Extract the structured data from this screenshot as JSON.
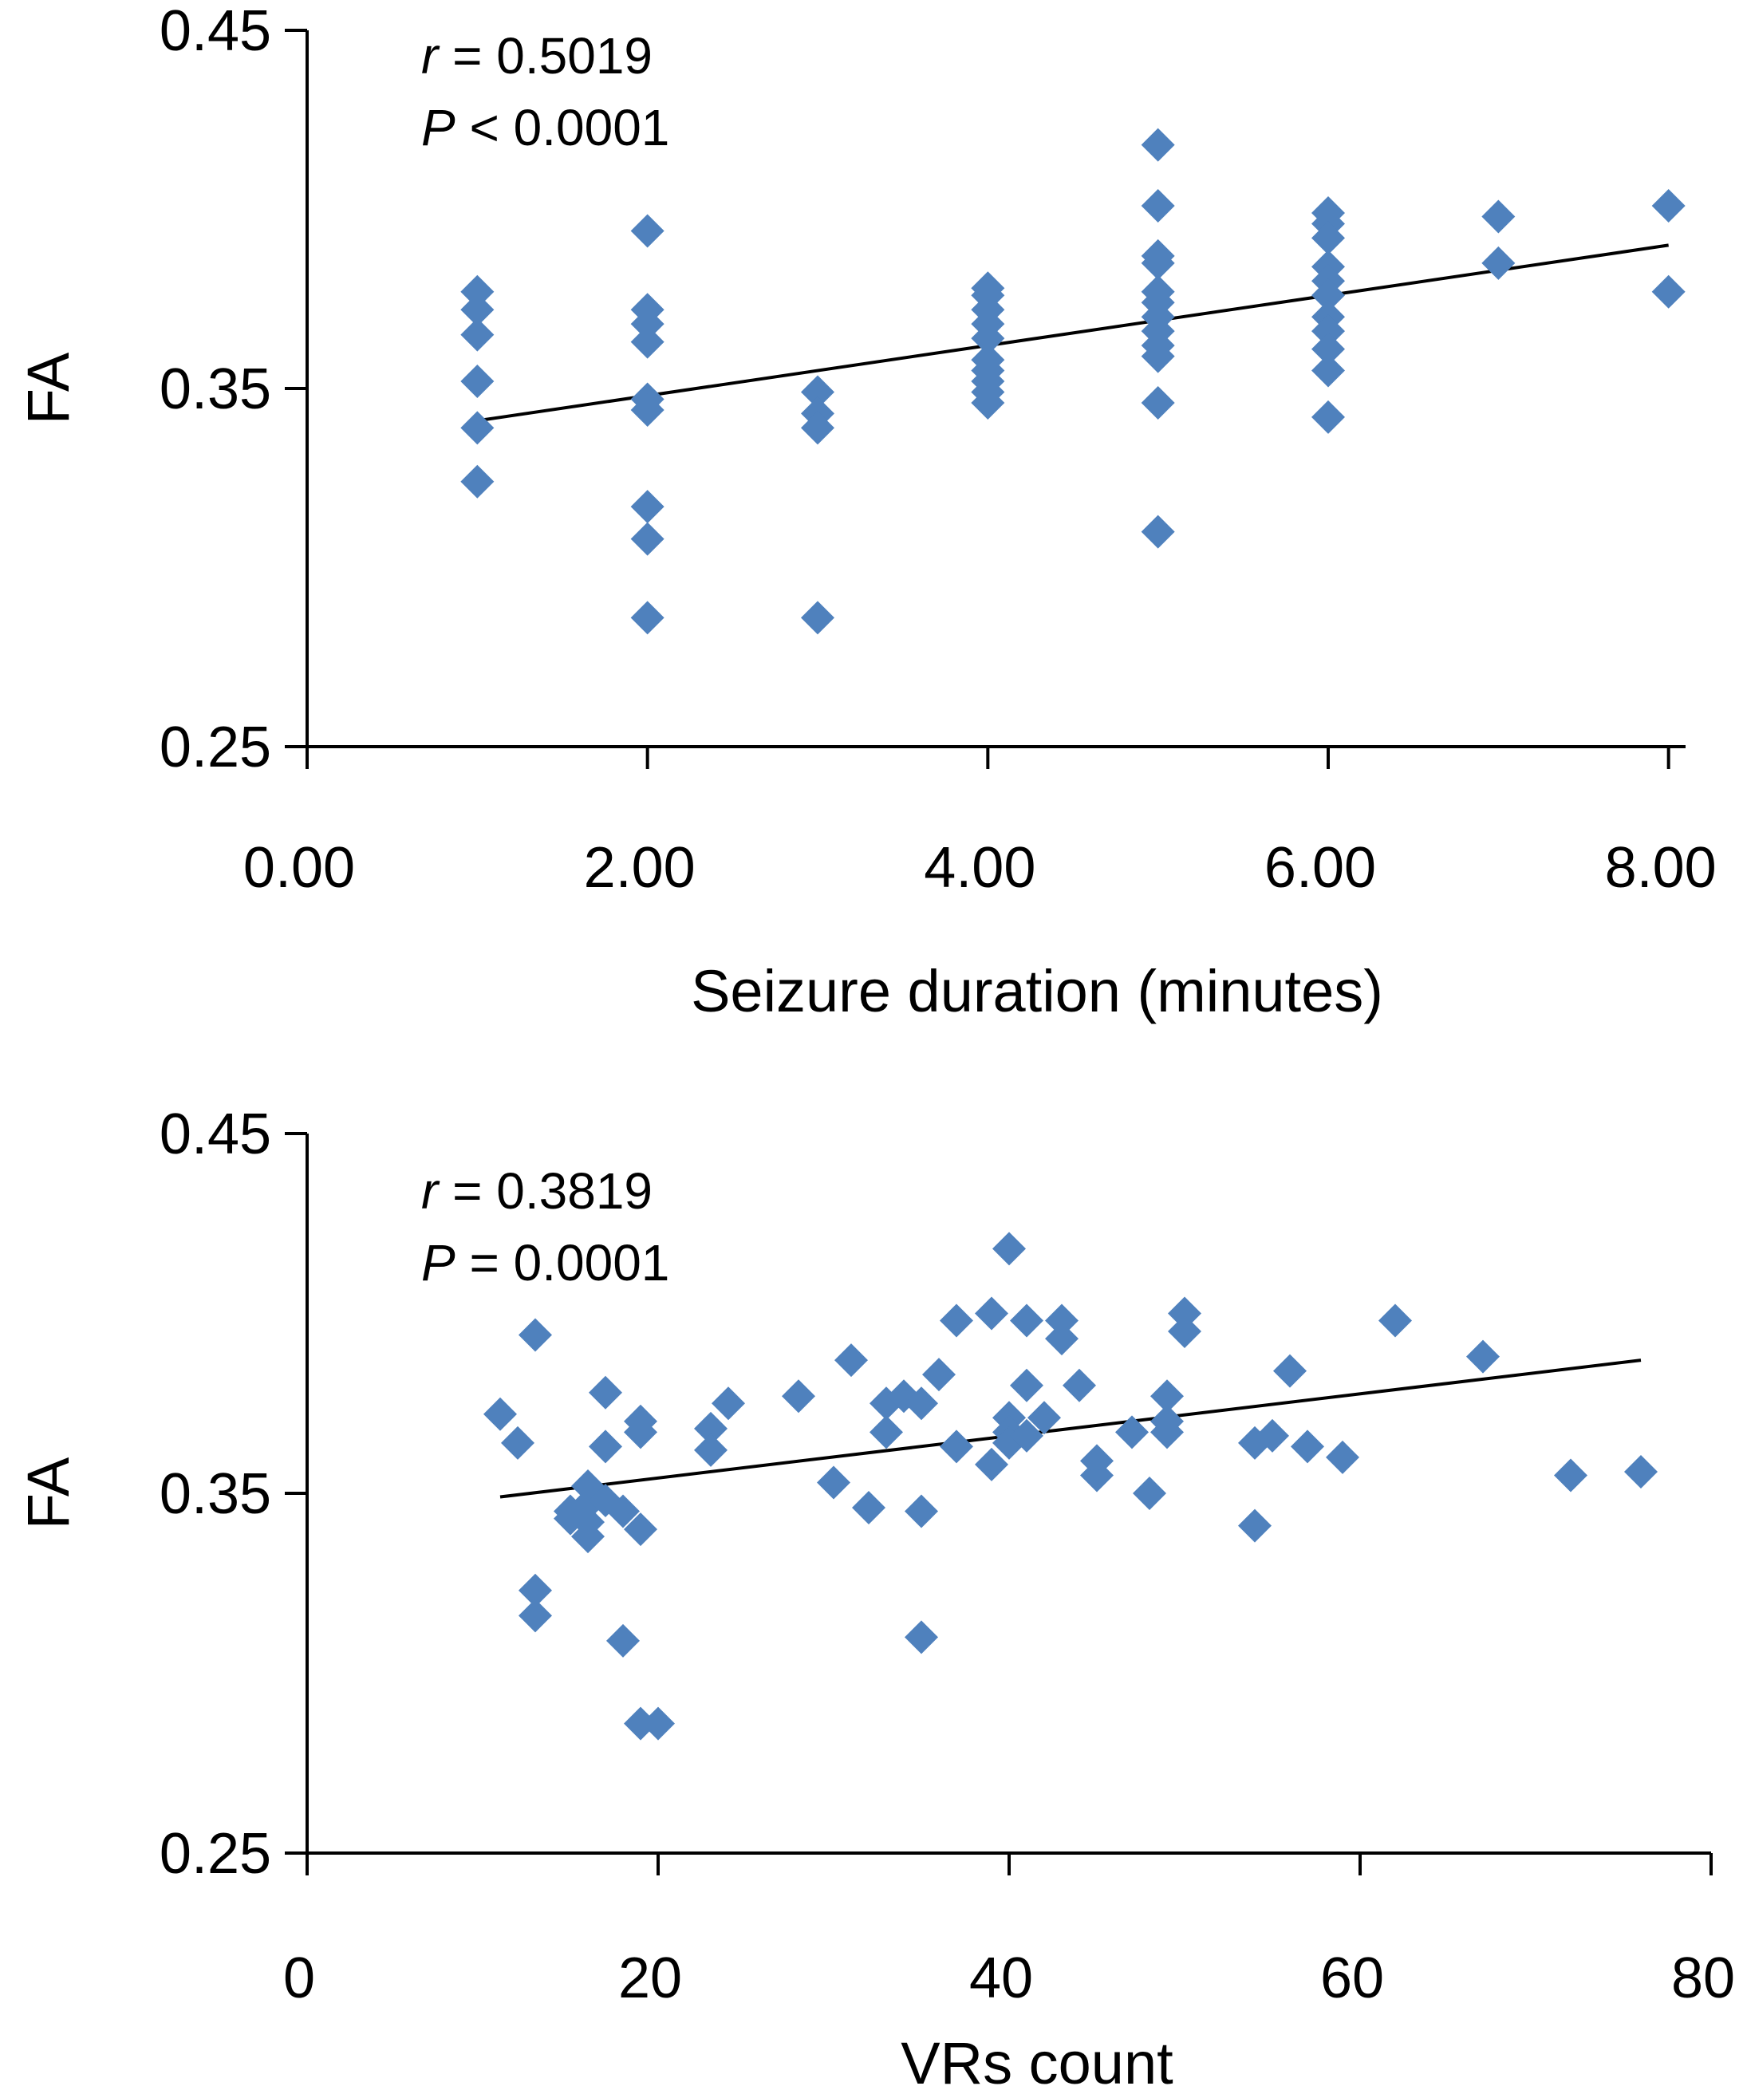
{
  "colors": {
    "marker": "#4F81BD",
    "axis": "#000000",
    "trend": "#000000"
  },
  "chart_data": [
    {
      "type": "scatter",
      "xlabel": "Seizure duration (minutes)",
      "ylabel": "FA",
      "xlim": [
        0,
        9
      ],
      "ylim": [
        0.25,
        0.45
      ],
      "xticks": [
        0,
        2,
        4,
        6,
        8
      ],
      "xtick_labels": [
        "0.00",
        "2.00",
        "4.00",
        "6.00",
        "8.00"
      ],
      "yticks": [
        0.25,
        0.35,
        0.45
      ],
      "ytick_labels": [
        "0.25",
        "0.35",
        "0.45"
      ],
      "grid": false,
      "legend": "none",
      "marker": "diamond",
      "stats": {
        "r_symbol": "r",
        "r_text": " = 0.5019",
        "p_symbol": "P",
        "p_text": " < 0.0001"
      },
      "trendline": {
        "x": [
          1,
          8
        ],
        "y": [
          0.341,
          0.39
        ]
      },
      "series": [
        {
          "points": [
            [
              1,
              0.377
            ],
            [
              1,
              0.372
            ],
            [
              1,
              0.365
            ],
            [
              1,
              0.352
            ],
            [
              1,
              0.339
            ],
            [
              1,
              0.324
            ],
            [
              2,
              0.394
            ],
            [
              2,
              0.372
            ],
            [
              2,
              0.368
            ],
            [
              2,
              0.363
            ],
            [
              2,
              0.347
            ],
            [
              2,
              0.344
            ],
            [
              2,
              0.317
            ],
            [
              2,
              0.308
            ],
            [
              2,
              0.286
            ],
            [
              3,
              0.349
            ],
            [
              3,
              0.343
            ],
            [
              3,
              0.339
            ],
            [
              3,
              0.286
            ],
            [
              4,
              0.378
            ],
            [
              4,
              0.376
            ],
            [
              4,
              0.372
            ],
            [
              4,
              0.368
            ],
            [
              4,
              0.364
            ],
            [
              4,
              0.358
            ],
            [
              4,
              0.355
            ],
            [
              4,
              0.352
            ],
            [
              4,
              0.349
            ],
            [
              4,
              0.346
            ],
            [
              5,
              0.418
            ],
            [
              5,
              0.401
            ],
            [
              5,
              0.387
            ],
            [
              5,
              0.385
            ],
            [
              5,
              0.377
            ],
            [
              5,
              0.374
            ],
            [
              5,
              0.37
            ],
            [
              5,
              0.366
            ],
            [
              5,
              0.362
            ],
            [
              5,
              0.359
            ],
            [
              5,
              0.346
            ],
            [
              5,
              0.31
            ],
            [
              6,
              0.399
            ],
            [
              6,
              0.396
            ],
            [
              6,
              0.392
            ],
            [
              6,
              0.384
            ],
            [
              6,
              0.38
            ],
            [
              6,
              0.376
            ],
            [
              6,
              0.37
            ],
            [
              6,
              0.366
            ],
            [
              6,
              0.361
            ],
            [
              6,
              0.355
            ],
            [
              6,
              0.342
            ],
            [
              7,
              0.398
            ],
            [
              7,
              0.385
            ],
            [
              8,
              0.401
            ],
            [
              8,
              0.377
            ]
          ]
        }
      ]
    },
    {
      "type": "scatter",
      "xlabel": "VRs count",
      "ylabel": "FA",
      "xlim": [
        0,
        80
      ],
      "ylim": [
        0.25,
        0.45
      ],
      "xticks": [
        0,
        20,
        40,
        60,
        80
      ],
      "xtick_labels": [
        "0",
        "20",
        "40",
        "60",
        "80"
      ],
      "yticks": [
        0.25,
        0.35,
        0.45
      ],
      "ytick_labels": [
        "0.25",
        "0.35",
        "0.45"
      ],
      "grid": false,
      "legend": "none",
      "marker": "diamond",
      "stats": {
        "r_symbol": "r",
        "r_text": " = 0.3819",
        "p_symbol": "P",
        "p_text": " = 0.0001"
      },
      "trendline": {
        "x": [
          11,
          76
        ],
        "y": [
          0.349,
          0.387
        ]
      },
      "series": [
        {
          "points": [
            [
              11,
              0.372
            ],
            [
              12,
              0.364
            ],
            [
              13,
              0.394
            ],
            [
              13,
              0.323
            ],
            [
              13,
              0.316
            ],
            [
              15,
              0.345
            ],
            [
              15,
              0.343
            ],
            [
              16,
              0.352
            ],
            [
              16,
              0.347
            ],
            [
              16,
              0.342
            ],
            [
              16,
              0.338
            ],
            [
              17,
              0.378
            ],
            [
              17,
              0.363
            ],
            [
              17,
              0.348
            ],
            [
              18,
              0.345
            ],
            [
              18,
              0.309
            ],
            [
              19,
              0.37
            ],
            [
              19,
              0.367
            ],
            [
              19,
              0.34
            ],
            [
              19,
              0.286
            ],
            [
              20,
              0.286
            ],
            [
              23,
              0.368
            ],
            [
              23,
              0.362
            ],
            [
              24,
              0.375
            ],
            [
              28,
              0.377
            ],
            [
              30,
              0.353
            ],
            [
              31,
              0.387
            ],
            [
              32,
              0.346
            ],
            [
              33,
              0.375
            ],
            [
              33,
              0.367
            ],
            [
              34,
              0.377
            ],
            [
              35,
              0.375
            ],
            [
              35,
              0.345
            ],
            [
              35,
              0.31
            ],
            [
              36,
              0.383
            ],
            [
              37,
              0.398
            ],
            [
              37,
              0.363
            ],
            [
              39,
              0.4
            ],
            [
              39,
              0.358
            ],
            [
              40,
              0.418
            ],
            [
              40,
              0.371
            ],
            [
              40,
              0.367
            ],
            [
              40,
              0.364
            ],
            [
              41,
              0.398
            ],
            [
              41,
              0.38
            ],
            [
              41,
              0.366
            ],
            [
              42,
              0.371
            ],
            [
              43,
              0.398
            ],
            [
              43,
              0.393
            ],
            [
              44,
              0.38
            ],
            [
              45,
              0.359
            ],
            [
              45,
              0.355
            ],
            [
              47,
              0.367
            ],
            [
              48,
              0.35
            ],
            [
              49,
              0.377
            ],
            [
              49,
              0.37
            ],
            [
              49,
              0.367
            ],
            [
              50,
              0.4
            ],
            [
              50,
              0.395
            ],
            [
              54,
              0.364
            ],
            [
              54,
              0.341
            ],
            [
              55,
              0.366
            ],
            [
              56,
              0.384
            ],
            [
              57,
              0.363
            ],
            [
              59,
              0.36
            ],
            [
              62,
              0.398
            ],
            [
              67,
              0.388
            ],
            [
              72,
              0.355
            ],
            [
              76,
              0.356
            ]
          ]
        }
      ]
    }
  ]
}
